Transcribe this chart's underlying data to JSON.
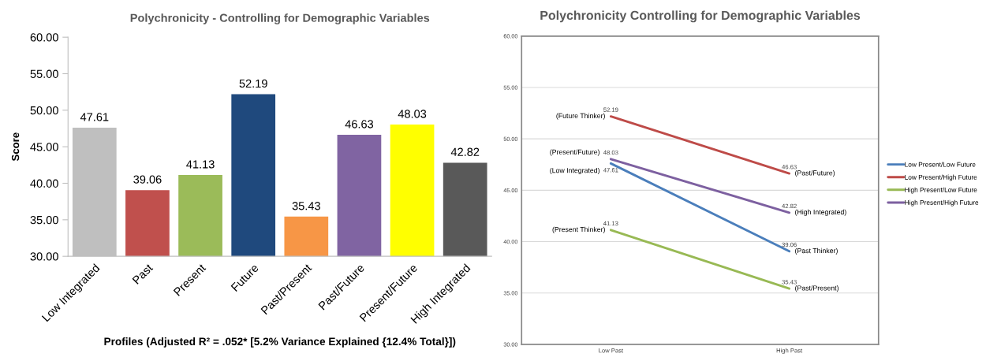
{
  "chart_data": [
    {
      "type": "bar",
      "title": "Polychronicity - Controlling for Demographic Variables",
      "xlabel": "Profiles (Adjusted R² = .052* [5.2% Variance Explained {12.4% Total}])",
      "ylabel": "Score",
      "categories": [
        "Low Integrated",
        "Past",
        "Present",
        "Future",
        "Past/Present",
        "Past/Future",
        "Present/Future",
        "High Integrated"
      ],
      "values": [
        47.61,
        39.06,
        41.13,
        52.19,
        35.43,
        46.63,
        48.03,
        42.82
      ],
      "colors": [
        "#bfbfbf",
        "#c0504d",
        "#9bbb59",
        "#1f497d",
        "#f79646",
        "#8064a2",
        "#ffff00",
        "#595959"
      ],
      "ylim": [
        30,
        60
      ],
      "yticks": [
        {
          "value": 30,
          "label": "30.00"
        },
        {
          "value": 35,
          "label": "35.00"
        },
        {
          "value": 40,
          "label": "40.00"
        },
        {
          "value": 45,
          "label": "45.00"
        },
        {
          "value": 50,
          "label": "50.00"
        },
        {
          "value": 55,
          "label": "55.00"
        },
        {
          "value": 60,
          "label": "60.00"
        }
      ],
      "data_labels": true
    },
    {
      "type": "line",
      "title": "Polychronicity Controlling for Demographic Variables",
      "categories": [
        "Low Past",
        "High Past"
      ],
      "series": [
        {
          "name": "Low Present/Low Future",
          "color": "#4a7ebb",
          "values": [
            47.61,
            39.06
          ]
        },
        {
          "name": "Low Present/High Future",
          "color": "#be4b48",
          "values": [
            52.19,
            46.63
          ]
        },
        {
          "name": "High Present/Low Future",
          "color": "#98b954",
          "values": [
            41.13,
            35.43
          ]
        },
        {
          "name": "High Present/High Future",
          "color": "#7d60a0",
          "values": [
            48.03,
            42.82
          ]
        }
      ],
      "ylim": [
        30,
        60
      ],
      "yticks": [
        {
          "value": 30,
          "label": "30.00"
        },
        {
          "value": 35,
          "label": "35.00"
        },
        {
          "value": 40,
          "label": "40.00"
        },
        {
          "value": 45,
          "label": "45.00"
        },
        {
          "value": 50,
          "label": "50.00"
        },
        {
          "value": 55,
          "label": "55.00"
        },
        {
          "value": 60,
          "label": "60.00"
        }
      ],
      "grid": "y",
      "legend": "right",
      "data_labels": true,
      "marker": "none",
      "line_style": "solid",
      "annotations": [
        {
          "text": "(Low Integrated)",
          "x": "Low Past",
          "y": 47.61
        },
        {
          "text": "(Past Thinker)",
          "x": "High Past",
          "y": 39.06
        },
        {
          "text": "(Future Thinker)",
          "x": "Low Past",
          "y": 52.19
        },
        {
          "text": "(Past/Future)",
          "x": "High Past",
          "y": 46.63
        },
        {
          "text": "(Present Thinker)",
          "x": "Low Past",
          "y": 41.13
        },
        {
          "text": "(Past/Present)",
          "x": "High Past",
          "y": 35.43
        },
        {
          "text": "(Present/Future)",
          "x": "Low Past",
          "y": 48.03
        },
        {
          "text": "(High Integrated)",
          "x": "High Past",
          "y": 42.82
        }
      ]
    }
  ]
}
